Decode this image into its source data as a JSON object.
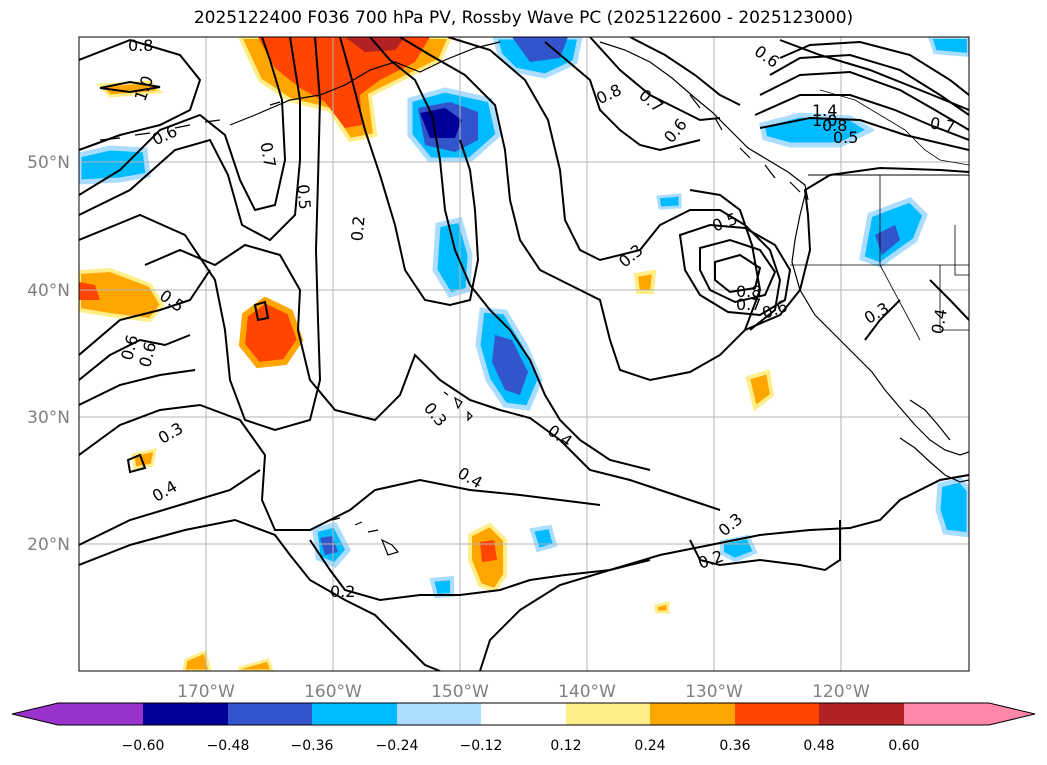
{
  "title": "2025122400 F036 700 hPa PV, Rossby Wave PC (2025122600 - 2025123000)",
  "map": {
    "lon_range": [
      -180,
      -110
    ],
    "lat_range": [
      10,
      60
    ],
    "lat_ticks": [
      "50°N",
      "40°N",
      "30°N",
      "20°N"
    ],
    "lon_ticks": [
      "170°W",
      "160°W",
      "150°W",
      "140°W",
      "130°W",
      "120°W"
    ]
  },
  "colorbar": {
    "ticks": [
      "−0.60",
      "−0.48",
      "−0.36",
      "−0.24",
      "−0.12",
      "0.12",
      "0.24",
      "0.36",
      "0.48",
      "0.60"
    ],
    "colors": [
      "#9933cc",
      "#000099",
      "#3355cc",
      "#00bbff",
      "#aaddff",
      "#ffffff",
      "#ffee88",
      "#ffa500",
      "#ff4500",
      "#b22222",
      "#ff88aa"
    ]
  },
  "contour_labels": [
    "0.8",
    "1.0",
    "0.6",
    "0.7",
    "0.5",
    "0.2",
    "0.8",
    "0.7",
    "0.6",
    "0.6",
    "1.4",
    "1.0",
    "0.8",
    "0.7",
    "0.5",
    "0.5",
    "0.3",
    "0.8",
    "0.7",
    "0.6",
    "0.3",
    "0.4",
    "0.5",
    "0.6",
    "0.6",
    "0.3",
    "0.4",
    "0.4",
    "0.3",
    "0.4",
    "0.3",
    "0.2",
    "0.2"
  ]
}
